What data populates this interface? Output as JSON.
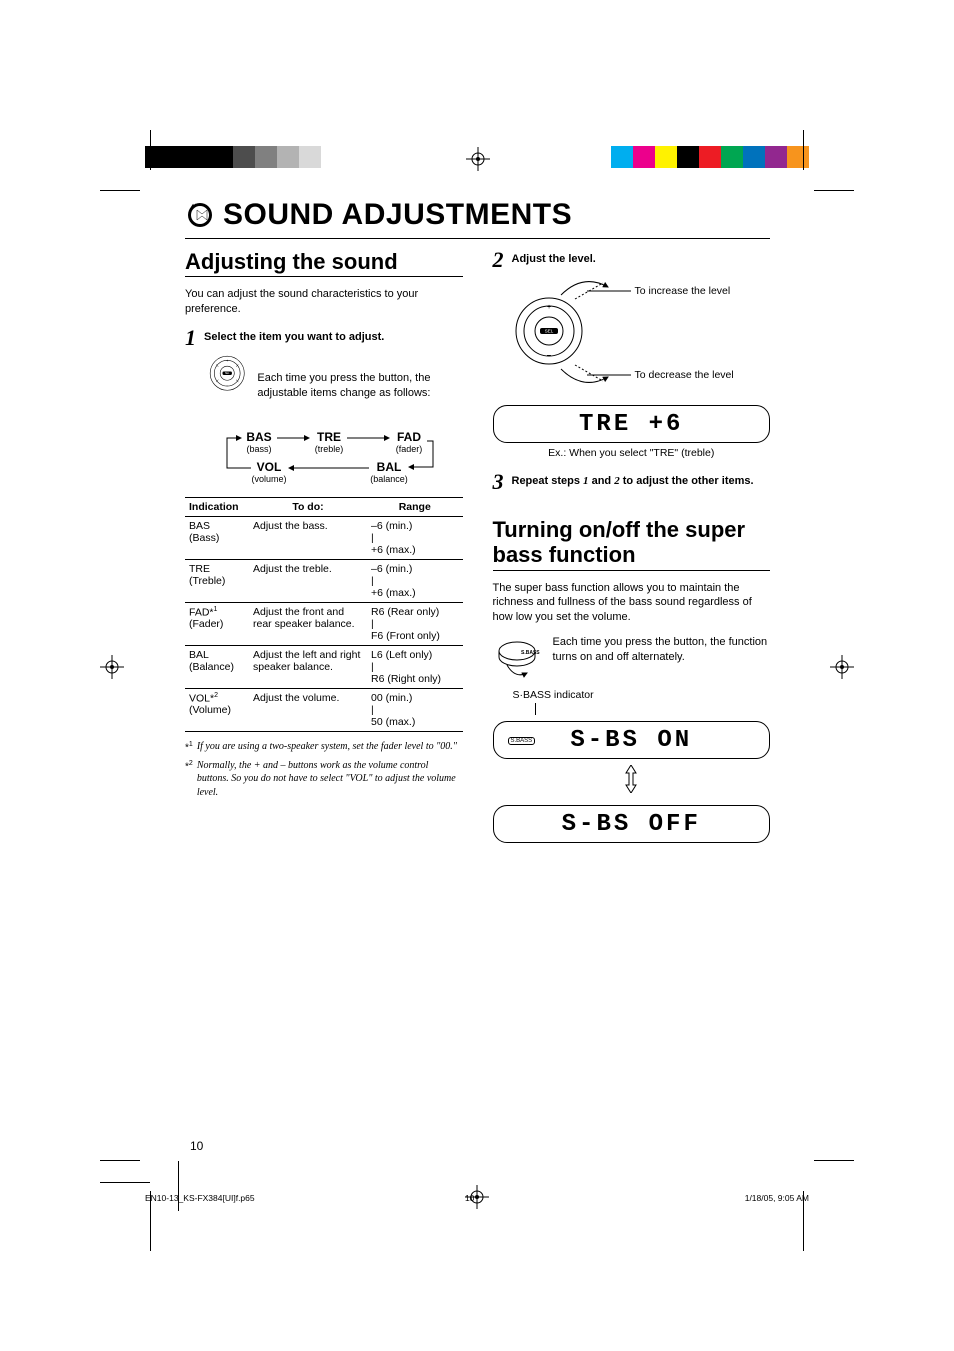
{
  "colors": {
    "swatches_left": [
      "#000000",
      "#000000",
      "#000000",
      "#000000",
      "#4d4d4d",
      "#808080",
      "#b3b3b3",
      "#d9d9d9",
      "#ffffff"
    ],
    "swatches_right": [
      "#00aeef",
      "#ec008c",
      "#fff200",
      "#000000",
      "#ed1c24",
      "#00a651",
      "#0072bc",
      "#92278f",
      "#f7941d"
    ],
    "text": "#000000",
    "bg": "#ffffff"
  },
  "title": "SOUND ADJUSTMENTS",
  "left": {
    "heading": "Adjusting the sound",
    "intro": "You can adjust the sound characteristics to your preference.",
    "step1_label": "Select the item you want to adjust.",
    "step1_caption": "Each time you press the button, the adjustable items change as follows:",
    "flow_items": [
      {
        "code": "BAS",
        "label": "(bass)"
      },
      {
        "code": "TRE",
        "label": "(treble)"
      },
      {
        "code": "FAD",
        "label": "(fader)"
      },
      {
        "code": "VOL",
        "label": "(volume)"
      },
      {
        "code": "BAL",
        "label": "(balance)"
      }
    ],
    "table": {
      "headers": [
        "Indication",
        "To do:",
        "Range"
      ],
      "rows": [
        {
          "ind": "BAS\n(Bass)",
          "todo": "Adjust the bass.",
          "range": "–6 (min.)\n|\n+6 (max.)"
        },
        {
          "ind": "TRE\n(Treble)",
          "todo": "Adjust the treble.",
          "range": "–6 (min.)\n|\n+6 (max.)"
        },
        {
          "ind": "FAD*¹\n(Fader)",
          "todo": "Adjust the front and rear speaker balance.",
          "range": "R6 (Rear only)\n|\nF6 (Front only)"
        },
        {
          "ind": "BAL\n(Balance)",
          "todo": "Adjust the left and right speaker balance.",
          "range": "L6 (Left only)\n|\nR6 (Right only)"
        },
        {
          "ind": "VOL*²\n(Volume)",
          "todo": "Adjust the volume.",
          "range": "00 (min.)\n|\n50 (max.)"
        }
      ]
    },
    "footnote1_marker": "*1",
    "footnote1": "If you are using a two-speaker system, set the fader level to \"00.\"",
    "footnote2_marker": "*2",
    "footnote2": "Normally, the + and – buttons work as the volume control buttons. So you do not have to select \"VOL\" to adjust the volume level."
  },
  "right": {
    "step2_label": "Adjust the level.",
    "increase": "To increase the level",
    "decrease": "To decrease the level",
    "lcd1": "TRE  +6",
    "lcd1_caption": "Ex.: When you select \"TRE\" (treble)",
    "step3_pre": "Repeat steps ",
    "step3_mid": " and ",
    "step3_post": " to adjust the other items.",
    "step3_n1": "1",
    "step3_n2": "2",
    "heading2": "Turning on/off the super bass function",
    "sbass_intro": "The super bass function allows you to maintain the richness and fullness of the bass sound regardless of how low you set the volume.",
    "sbass_caption": "Each time you press the button, the function turns on and off alternately.",
    "indicator_label": "S·BASS indicator",
    "sbass_pill": "S.BASS",
    "lcd_on": "S-BS  ON",
    "lcd_off": "S-BS  OFF"
  },
  "page_number": "10",
  "footer": {
    "file": "EN10-13_KS-FX384[UI]f.p65",
    "page": "10",
    "date": "1/18/05, 9:05 AM"
  }
}
